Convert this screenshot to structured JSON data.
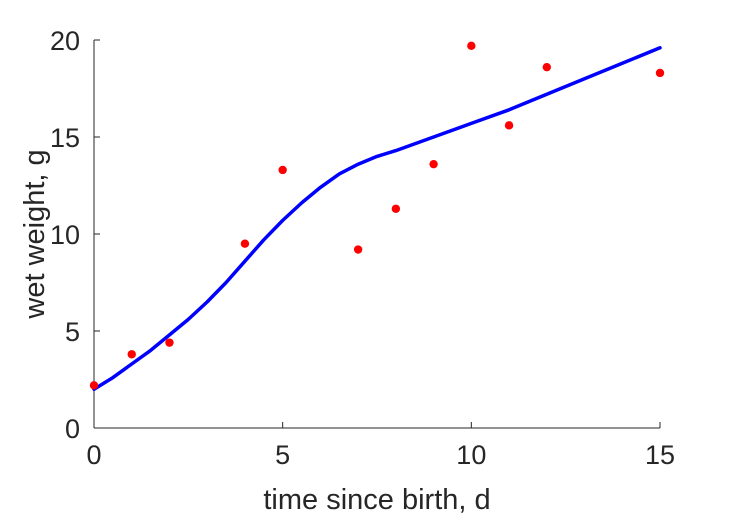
{
  "chart_data": {
    "type": "scatter",
    "title": "",
    "xlabel": "time since birth, d",
    "ylabel": "wet weight, g",
    "xlim": [
      0,
      15
    ],
    "ylim": [
      0,
      20
    ],
    "xticks": [
      "0",
      "5",
      "10",
      "15"
    ],
    "yticks": [
      "0",
      "5",
      "10",
      "15",
      "20"
    ],
    "grid": false,
    "legend": "none",
    "series": [
      {
        "kind": "points",
        "color": "#ff0000",
        "x": [
          0,
          1,
          2,
          4,
          5,
          7,
          8,
          9,
          10,
          11,
          12,
          15
        ],
        "y": [
          2.2,
          3.8,
          4.4,
          9.5,
          13.3,
          9.2,
          11.3,
          13.6,
          19.7,
          15.6,
          18.6,
          18.3
        ]
      },
      {
        "kind": "line",
        "color": "#0000ff",
        "x": [
          0,
          0.5,
          1,
          1.5,
          2,
          2.5,
          3,
          3.5,
          4,
          4.5,
          5,
          5.5,
          6,
          6.5,
          7,
          7.5,
          8,
          9,
          10,
          11,
          12,
          13,
          14,
          15
        ],
        "y": [
          2.0,
          2.6,
          3.3,
          4.0,
          4.8,
          5.6,
          6.5,
          7.5,
          8.6,
          9.7,
          10.7,
          11.6,
          12.4,
          13.1,
          13.6,
          14.0,
          14.3,
          15.0,
          15.7,
          16.4,
          17.2,
          18.0,
          18.8,
          19.6
        ]
      }
    ]
  }
}
